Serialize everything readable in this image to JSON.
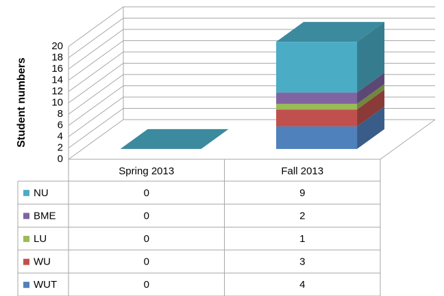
{
  "chart_data": {
    "type": "bar3d_stacked",
    "y_label": "Student numbers",
    "categories": [
      "Spring 2013",
      "Fall 2013"
    ],
    "series": [
      {
        "name": "NU",
        "color": "#4bacc6",
        "values": [
          0,
          9
        ]
      },
      {
        "name": "BME",
        "color": "#8064a2",
        "values": [
          0,
          2
        ]
      },
      {
        "name": "LU",
        "color": "#9bbb59",
        "values": [
          0,
          1
        ]
      },
      {
        "name": "WU",
        "color": "#c0504d",
        "values": [
          0,
          3
        ]
      },
      {
        "name": "WUT",
        "color": "#4f81bd",
        "values": [
          0,
          4
        ]
      }
    ],
    "ylim": [
      0,
      20
    ],
    "yticks": [
      0,
      2,
      4,
      6,
      8,
      10,
      12,
      14,
      16,
      18,
      20
    ],
    "grid": true,
    "data_table": true
  }
}
